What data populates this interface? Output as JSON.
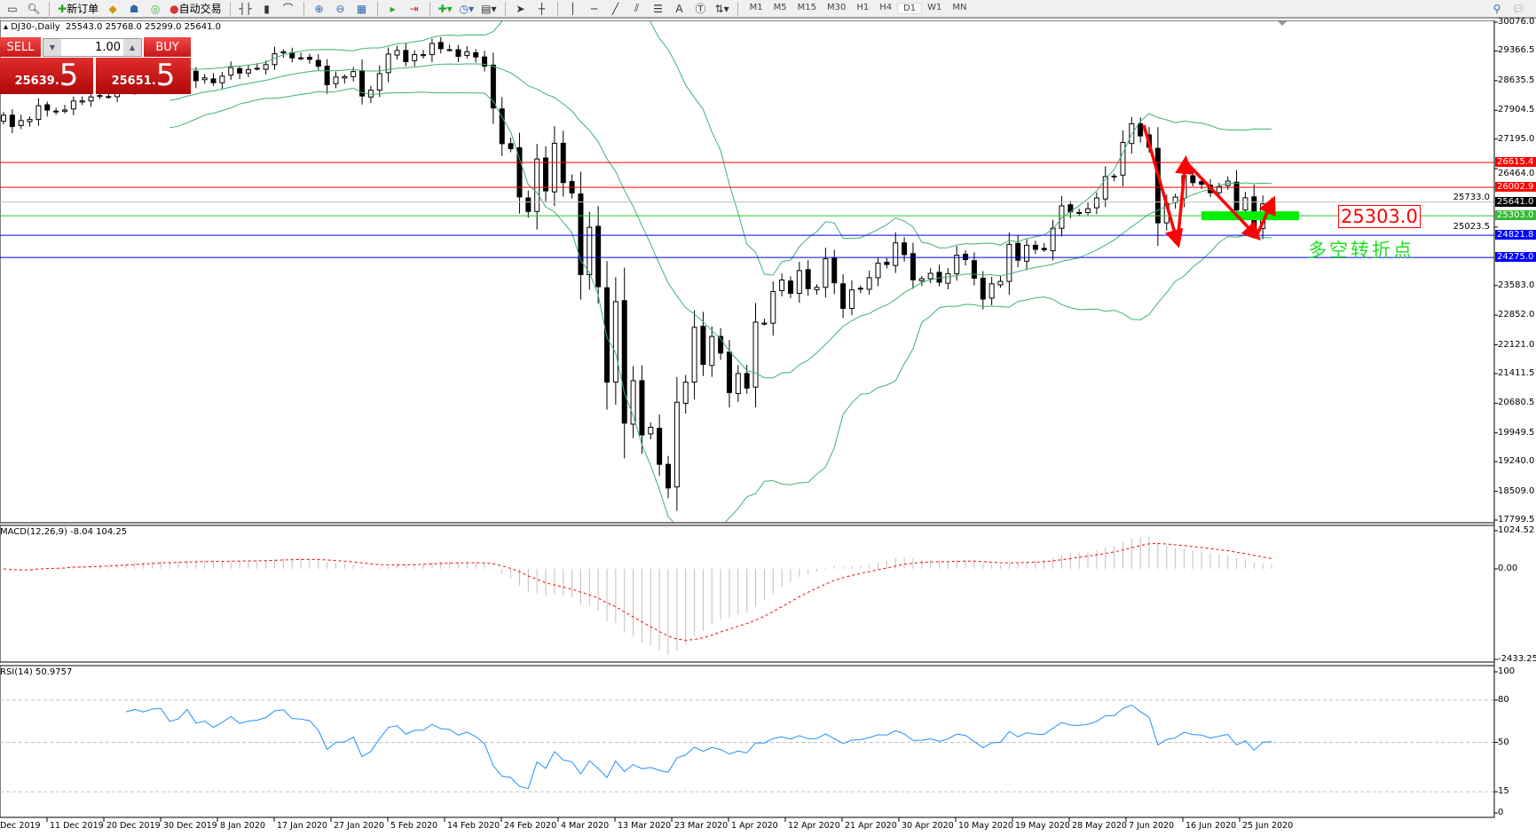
{
  "toolbar": {
    "new_order": "新订单",
    "auto_trading": "自动交易",
    "timeframes": [
      "M1",
      "M5",
      "M15",
      "M30",
      "H1",
      "H4",
      "D1",
      "W1",
      "MN"
    ],
    "active_timeframe": "D1"
  },
  "chart": {
    "title": "DJ30-,Daily",
    "ohlc": "25543.0 25768.0 25299.0 25641.0",
    "symbol_color": "#000000"
  },
  "trade_panel": {
    "sell_label": "SELL",
    "buy_label": "BUY",
    "lot": "1.00",
    "sell_price_main": "25639.",
    "sell_price_big": "5",
    "buy_price_main": "25651.",
    "buy_price_big": "5"
  },
  "price_axis": {
    "range": [
      17799.5,
      30076.0
    ],
    "ticks": [
      "30076.0",
      "29366.5",
      "28635.5",
      "27904.5",
      "27195.0",
      "26464.0",
      "25733.0",
      "25023.5",
      "23583.0",
      "22852.0",
      "22121.0",
      "21411.5",
      "20680.5",
      "19949.5",
      "19240.0",
      "18509.0",
      "17799.5"
    ]
  },
  "levels": [
    {
      "value": 26615.4,
      "label": "26615.4",
      "color": "#ff0000"
    },
    {
      "value": 26002.9,
      "label": "26002.9",
      "color": "#ff0000"
    },
    {
      "value": 25641.0,
      "label": "25641.0",
      "color": "#c0c0c0",
      "label_bg": "#000000"
    },
    {
      "value": 25303.0,
      "label": "25303.0",
      "color": "#33bb33",
      "label_bg": "#33bb33"
    },
    {
      "value": 24821.8,
      "label": "24821.8",
      "color": "#0000ff"
    },
    {
      "value": 24275.0,
      "label": "24275.0",
      "color": "#0000ff"
    }
  ],
  "annotations": {
    "pivot_price": "25303.0",
    "pivot_text": "多空转折点",
    "arrow_color": "#ff0000",
    "zone_color": "#00ee00"
  },
  "chart_data": {
    "type": "candlestick",
    "closes": [
      27783,
      27503,
      27650,
      27677,
      28015,
      27909,
      27881,
      27911,
      28132,
      28135,
      28235,
      28267,
      28239,
      28377,
      28455,
      28551,
      28515,
      28621,
      28645,
      28462,
      28538,
      28868,
      28634,
      28703,
      28583,
      28745,
      28957,
      28823,
      28907,
      28940,
      29030,
      29297,
      29348,
      29196,
      29186,
      29160,
      28990,
      28535,
      28723,
      28734,
      28859,
      28256,
      28400,
      28807,
      29290,
      29379,
      29103,
      29276,
      29276,
      29551,
      29423,
      29398,
      29232,
      29348,
      29219,
      28992,
      27961,
      27081,
      26957,
      25767,
      25409,
      26703,
      25917,
      27091,
      26121,
      25865,
      23851,
      25018,
      23553,
      21200,
      23185,
      20189,
      21237,
      19899,
      20087,
      19174,
      18591,
      20704,
      21200,
      22552,
      21637,
      22327,
      21917,
      20943,
      21413,
      21053,
      22680,
      22654,
      23433,
      23719,
      23390,
      23950,
      23505,
      23538,
      24242,
      23650,
      23019,
      23475,
      23515,
      23775,
      24134,
      24101,
      24634,
      24345,
      23724,
      23750,
      23883,
      23664,
      23875,
      24331,
      24221,
      23765,
      23248,
      23625,
      23685,
      24597,
      24207,
      24575,
      24474,
      24465,
      24995,
      25548,
      25400,
      25383,
      25475,
      25742,
      26270,
      26281,
      27110,
      27572,
      27272,
      26990,
      25128,
      25606,
      25763,
      26290,
      26120,
      26080,
      25871,
      26025,
      26156,
      25445,
      25745,
      25015,
      25596,
      25641
    ],
    "bollinger": {
      "period": 20,
      "deviation": 2,
      "color": "#3cb371"
    },
    "macd": {
      "label": "MACD(12,26,9) -8.04 104.25",
      "range": [
        -2433.25,
        1024.52
      ],
      "ticks": [
        "1024.52",
        "0.00",
        "-2433.25"
      ],
      "histogram_color": "#c0c0c0",
      "signal_color": "#ff0000"
    },
    "rsi": {
      "label": "RSI(14) 50.9757",
      "range": [
        0,
        100
      ],
      "levels": [
        80,
        50,
        15
      ],
      "ticks": [
        "100",
        "80",
        "50",
        "15",
        "0"
      ],
      "color": "#1e90ff"
    },
    "x_labels": [
      "Dec 2019",
      "11 Dec 2019",
      "20 Dec 2019",
      "30 Dec 2019",
      "8 Jan 2020",
      "17 Jan 2020",
      "27 Jan 2020",
      "5 Feb 2020",
      "14 Feb 2020",
      "24 Feb 2020",
      "4 Mar 2020",
      "13 Mar 2020",
      "23 Mar 2020",
      "1 Apr 2020",
      "12 Apr 2020",
      "21 Apr 2020",
      "30 Apr 2020",
      "10 May 2020",
      "19 May 2020",
      "28 May 2020",
      "7 Jun 2020",
      "16 Jun 2020",
      "25 Jun 2020"
    ]
  }
}
